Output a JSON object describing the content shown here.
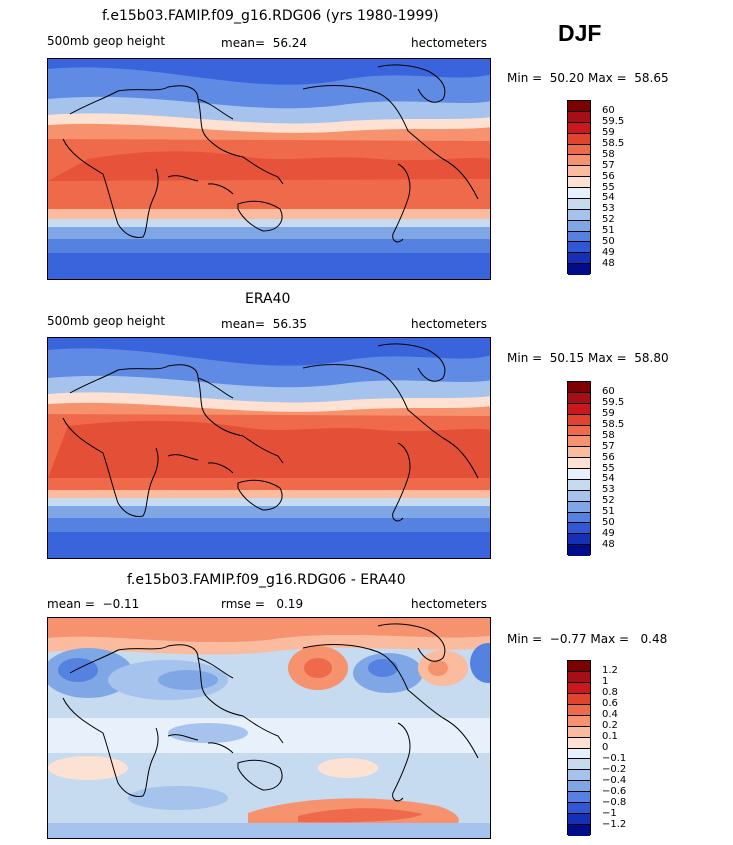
{
  "season": "DJF",
  "panels": [
    {
      "title": "f.e15b03.FAMIP.f09_g16.RDG06 (yrs 1980-1999)",
      "left_label": "500mb geop height",
      "center_label": "mean=  56.24",
      "units": "hectometers",
      "minmax": "Min =  50.20 Max =  58.65",
      "colorbar_labels": [
        "60",
        "59.5",
        "59",
        "58.5",
        "58",
        "57",
        "56",
        "55",
        "54",
        "53",
        "52",
        "51",
        "50",
        "49",
        "48"
      ],
      "colors": [
        "#7f0000",
        "#a50f15",
        "#cb181d",
        "#e0442f",
        "#ef6a4b",
        "#f6936e",
        "#fbbb9e",
        "#fde2d3",
        "#e8f0fb",
        "#c6dbef",
        "#a6c3ee",
        "#7fa7e6",
        "#5582e0",
        "#2f57d6",
        "#1530b6",
        "#000c8a"
      ]
    },
    {
      "title": "ERA40",
      "left_label": "500mb geop height",
      "center_label": "mean=  56.35",
      "units": "hectometers",
      "minmax": "Min =  50.15 Max =  58.80",
      "colorbar_labels": [
        "60",
        "59.5",
        "59",
        "58.5",
        "58",
        "57",
        "56",
        "55",
        "54",
        "53",
        "52",
        "51",
        "50",
        "49",
        "48"
      ],
      "colors": [
        "#7f0000",
        "#a50f15",
        "#cb181d",
        "#e0442f",
        "#ef6a4b",
        "#f6936e",
        "#fbbb9e",
        "#fde2d3",
        "#e8f0fb",
        "#c6dbef",
        "#a6c3ee",
        "#7fa7e6",
        "#5582e0",
        "#2f57d6",
        "#1530b6",
        "#000c8a"
      ]
    },
    {
      "title": "f.e15b03.FAMIP.f09_g16.RDG06 - ERA40",
      "left_label": "mean =  −0.11",
      "center_label": "rmse =   0.19",
      "units": "hectometers",
      "minmax": "Min =  −0.77 Max =   0.48",
      "colorbar_labels": [
        "1.2",
        "1",
        "0.8",
        "0.6",
        "0.4",
        "0.2",
        "0.1",
        "0",
        "−0.1",
        "−0.2",
        "−0.4",
        "−0.6",
        "−0.8",
        "−1",
        "−1.2"
      ],
      "colors": [
        "#7f0000",
        "#a50f15",
        "#cb181d",
        "#e0442f",
        "#ef6a4b",
        "#f6936e",
        "#fbbb9e",
        "#fde2d3",
        "#e8f0fb",
        "#c6dbef",
        "#a6c3ee",
        "#7fa7e6",
        "#5582e0",
        "#2f57d6",
        "#1530b6",
        "#000c8a"
      ]
    }
  ]
}
